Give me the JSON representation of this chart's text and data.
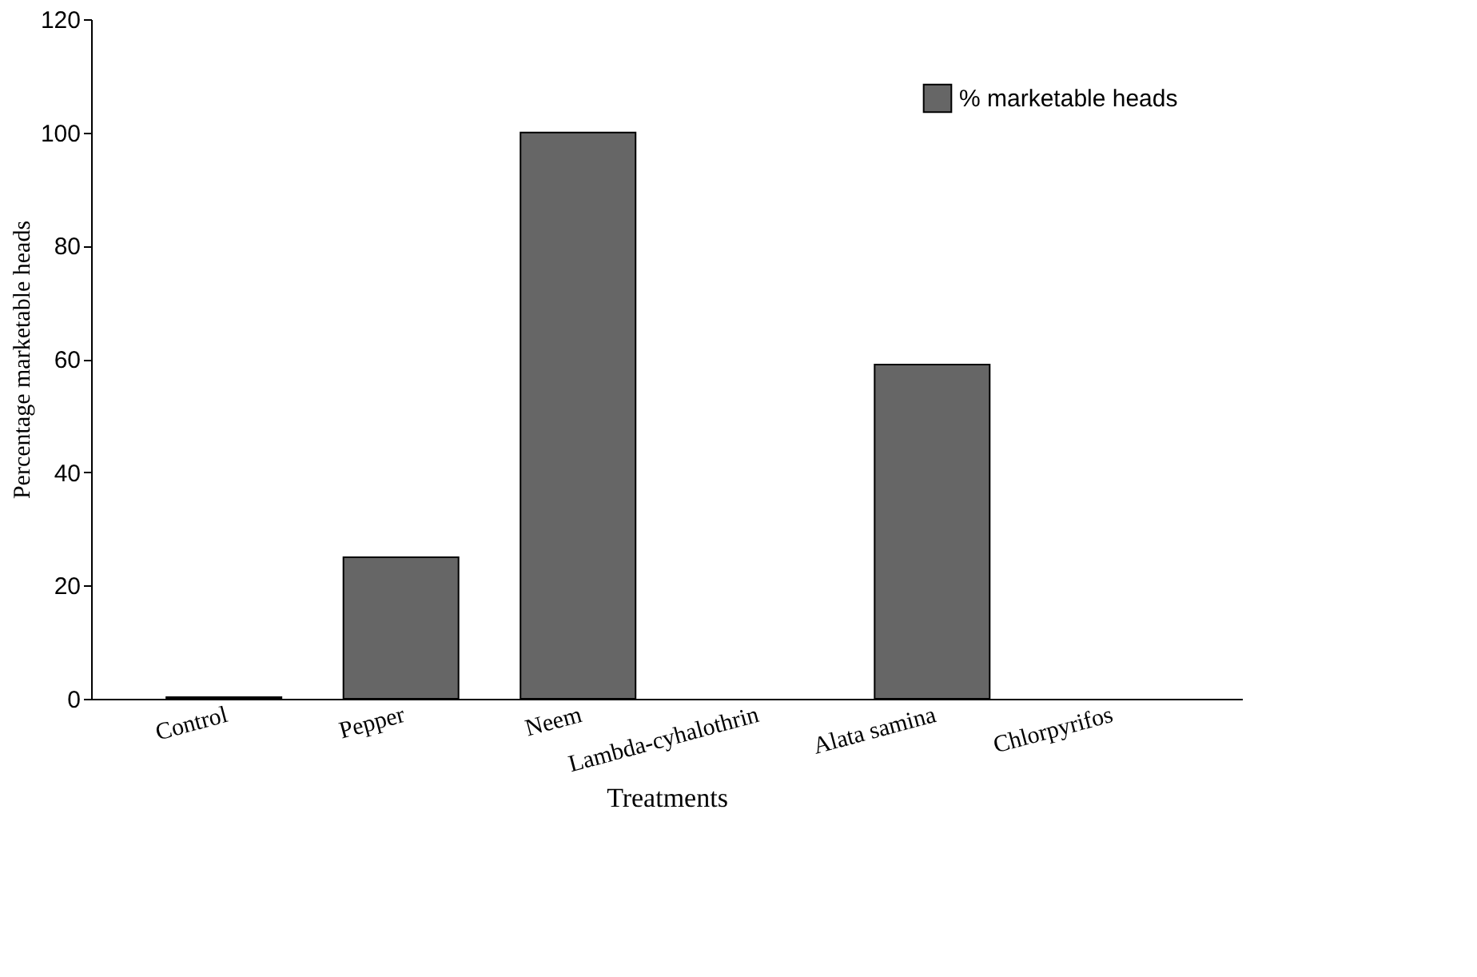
{
  "chart_data": {
    "type": "bar",
    "xlabel": "Treatments",
    "ylabel": "Percentage marketable heads",
    "categories": [
      "Control",
      "Pepper",
      "Neem",
      "Lambda-cyhalothrin",
      "Alata samina",
      "Chlorpyrifos"
    ],
    "series": [
      {
        "name": "% marketable heads",
        "color": "#666666",
        "values": [
          0.3,
          25,
          100,
          0,
          59,
          0
        ]
      }
    ],
    "ylim": [
      0,
      120
    ],
    "yticks": [
      0,
      20,
      40,
      60,
      80,
      100,
      120
    ],
    "grid": false,
    "legend": "top right"
  }
}
